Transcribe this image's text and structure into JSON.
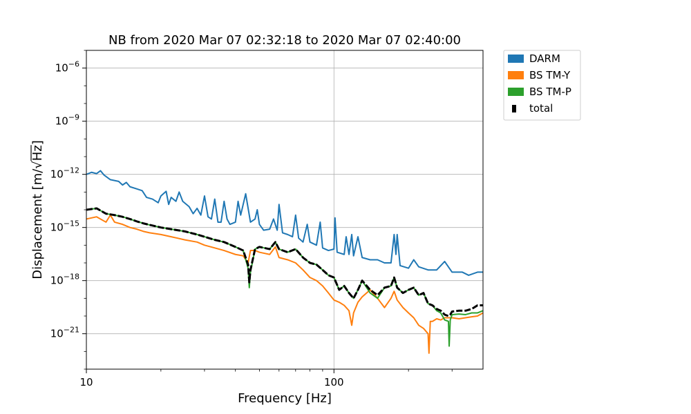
{
  "chart_data": {
    "type": "line",
    "title": "NB from 2020 Mar 07 02:32:18 to 2020 Mar 07 02:40:00",
    "xlabel": "Frequency [Hz]",
    "ylabel_prefix": "Displacement [m/",
    "ylabel_sqrt": "Hz",
    "ylabel_suffix": "]",
    "x_scale": "log",
    "y_scale": "log",
    "xlim": [
      10,
      400
    ],
    "ylim": [
      1e-23,
      1e-05
    ],
    "grid": true,
    "legend_position": "outside-top-right",
    "x_ticks": [
      {
        "value": 10,
        "label": "10"
      },
      {
        "value": 100,
        "label": "100"
      }
    ],
    "y_ticks": [
      {
        "value": 1e-06,
        "base": "10",
        "exp": "−6"
      },
      {
        "value": 1e-09,
        "base": "10",
        "exp": "−9"
      },
      {
        "value": 1e-12,
        "base": "10",
        "exp": "−12"
      },
      {
        "value": 1e-15,
        "base": "10",
        "exp": "−15"
      },
      {
        "value": 1e-18,
        "base": "10",
        "exp": "−18"
      },
      {
        "value": 1e-21,
        "base": "10",
        "exp": "−21"
      }
    ],
    "series": [
      {
        "name": "DARM",
        "color": "#1f77b4",
        "style": "solid",
        "points": [
          [
            10,
            1e-12
          ],
          [
            10.5,
            1.3e-12
          ],
          [
            11,
            1.1e-12
          ],
          [
            11.4,
            1.6e-12
          ],
          [
            11.8,
            9e-13
          ],
          [
            12.5,
            5e-13
          ],
          [
            13.5,
            4e-13
          ],
          [
            14,
            2.5e-13
          ],
          [
            14.5,
            3.5e-13
          ],
          [
            15,
            2e-13
          ],
          [
            16,
            1.5e-13
          ],
          [
            16.8,
            1.2e-13
          ],
          [
            17.5,
            5e-14
          ],
          [
            18.5,
            4e-14
          ],
          [
            19.5,
            2.5e-14
          ],
          [
            20,
            6e-14
          ],
          [
            21,
            1.1e-13
          ],
          [
            21.5,
            2e-14
          ],
          [
            22,
            5e-14
          ],
          [
            23,
            3e-14
          ],
          [
            23.7,
            1e-13
          ],
          [
            24.5,
            3e-14
          ],
          [
            26,
            1.5e-14
          ],
          [
            27,
            6e-15
          ],
          [
            28,
            1.2e-14
          ],
          [
            29,
            5e-15
          ],
          [
            30,
            6e-14
          ],
          [
            31,
            4e-15
          ],
          [
            32,
            3e-15
          ],
          [
            33,
            4e-14
          ],
          [
            34,
            2e-15
          ],
          [
            35,
            2e-15
          ],
          [
            36,
            3e-14
          ],
          [
            37,
            3e-15
          ],
          [
            38,
            1.5e-15
          ],
          [
            40,
            2e-15
          ],
          [
            41,
            3e-14
          ],
          [
            42,
            5e-15
          ],
          [
            44,
            8e-14
          ],
          [
            46,
            2e-15
          ],
          [
            48,
            3e-15
          ],
          [
            49,
            1e-14
          ],
          [
            50,
            1.5e-15
          ],
          [
            52,
            7e-16
          ],
          [
            55,
            8e-16
          ],
          [
            57,
            3e-15
          ],
          [
            59,
            7e-16
          ],
          [
            60,
            2e-14
          ],
          [
            62,
            5e-16
          ],
          [
            65,
            4e-16
          ],
          [
            68,
            3e-16
          ],
          [
            70,
            5e-15
          ],
          [
            72,
            2.5e-16
          ],
          [
            75,
            1.5e-16
          ],
          [
            78,
            1.5e-15
          ],
          [
            80,
            1.5e-16
          ],
          [
            85,
            1e-16
          ],
          [
            88,
            2e-15
          ],
          [
            90,
            7e-17
          ],
          [
            95,
            5e-17
          ],
          [
            100,
            6e-17
          ],
          [
            101,
            3.5e-15
          ],
          [
            103,
            4e-17
          ],
          [
            110,
            3e-17
          ],
          [
            112,
            3e-16
          ],
          [
            115,
            3e-17
          ],
          [
            118,
            4e-16
          ],
          [
            120,
            2.5e-17
          ],
          [
            125,
            3e-16
          ],
          [
            130,
            2e-17
          ],
          [
            140,
            1.5e-17
          ],
          [
            150,
            1.5e-17
          ],
          [
            160,
            1e-17
          ],
          [
            170,
            1e-17
          ],
          [
            175,
            4e-16
          ],
          [
            178,
            3e-17
          ],
          [
            180,
            4e-16
          ],
          [
            185,
            7e-18
          ],
          [
            200,
            5e-18
          ],
          [
            210,
            1.5e-17
          ],
          [
            220,
            6e-18
          ],
          [
            240,
            4e-18
          ],
          [
            260,
            4e-18
          ],
          [
            280,
            1.2e-17
          ],
          [
            300,
            3e-18
          ],
          [
            330,
            3e-18
          ],
          [
            350,
            2e-18
          ],
          [
            380,
            3e-18
          ],
          [
            400,
            3e-18
          ]
        ]
      },
      {
        "name": "BS TM-Y",
        "color": "#ff7f0e",
        "style": "solid",
        "points": [
          [
            10,
            3e-15
          ],
          [
            11,
            4e-15
          ],
          [
            12,
            2e-15
          ],
          [
            12.5,
            5e-15
          ],
          [
            13,
            2e-15
          ],
          [
            14,
            1.5e-15
          ],
          [
            15,
            1e-15
          ],
          [
            16,
            8e-16
          ],
          [
            17,
            6e-16
          ],
          [
            18,
            5e-16
          ],
          [
            20,
            4e-16
          ],
          [
            22,
            3e-16
          ],
          [
            25,
            2e-16
          ],
          [
            28,
            1.5e-16
          ],
          [
            30,
            1e-16
          ],
          [
            33,
            7e-17
          ],
          [
            36,
            5e-17
          ],
          [
            40,
            3e-17
          ],
          [
            43,
            2.5e-17
          ],
          [
            45,
            1e-17
          ],
          [
            46,
            5e-17
          ],
          [
            48,
            5e-17
          ],
          [
            50,
            4e-17
          ],
          [
            55,
            3e-17
          ],
          [
            58,
            8e-17
          ],
          [
            60,
            2e-17
          ],
          [
            65,
            1.5e-17
          ],
          [
            70,
            1e-17
          ],
          [
            75,
            4e-18
          ],
          [
            80,
            1.5e-18
          ],
          [
            85,
            1e-18
          ],
          [
            90,
            5e-19
          ],
          [
            95,
            2e-19
          ],
          [
            100,
            8e-20
          ],
          [
            105,
            6e-20
          ],
          [
            110,
            4e-20
          ],
          [
            115,
            2e-20
          ],
          [
            118,
            3e-21
          ],
          [
            120,
            1.5e-20
          ],
          [
            125,
            6e-20
          ],
          [
            130,
            1.2e-19
          ],
          [
            140,
            3e-19
          ],
          [
            150,
            1e-19
          ],
          [
            160,
            3e-20
          ],
          [
            170,
            1e-19
          ],
          [
            175,
            2.5e-19
          ],
          [
            180,
            8e-20
          ],
          [
            190,
            3e-20
          ],
          [
            200,
            1.5e-20
          ],
          [
            210,
            8e-21
          ],
          [
            220,
            3e-21
          ],
          [
            230,
            2e-21
          ],
          [
            240,
            1e-21
          ],
          [
            242,
            8e-23
          ],
          [
            245,
            5e-21
          ],
          [
            250,
            5e-21
          ],
          [
            260,
            7e-21
          ],
          [
            270,
            6e-21
          ],
          [
            280,
            8e-21
          ],
          [
            300,
            8e-21
          ],
          [
            320,
            7e-21
          ],
          [
            340,
            8e-21
          ],
          [
            360,
            9e-21
          ],
          [
            380,
            1e-20
          ],
          [
            400,
            1.5e-20
          ]
        ]
      },
      {
        "name": "BS TM-P",
        "color": "#2ca02c",
        "style": "solid",
        "points": [
          [
            10,
            1e-14
          ],
          [
            11,
            1.2e-14
          ],
          [
            12,
            6e-15
          ],
          [
            13,
            5e-15
          ],
          [
            14,
            4e-15
          ],
          [
            15,
            3e-15
          ],
          [
            16,
            2.2e-15
          ],
          [
            17,
            1.7e-15
          ],
          [
            18,
            1.4e-15
          ],
          [
            20,
            1e-15
          ],
          [
            22,
            8e-16
          ],
          [
            25,
            6e-16
          ],
          [
            28,
            4e-16
          ],
          [
            30,
            3e-16
          ],
          [
            33,
            2e-16
          ],
          [
            36,
            1.5e-16
          ],
          [
            40,
            8e-17
          ],
          [
            43,
            5e-17
          ],
          [
            45,
            5e-18
          ],
          [
            45.5,
            4e-19
          ],
          [
            46,
            3e-18
          ],
          [
            48,
            6e-17
          ],
          [
            50,
            8e-17
          ],
          [
            55,
            6e-17
          ],
          [
            58,
            1.5e-16
          ],
          [
            60,
            6e-17
          ],
          [
            65,
            4e-17
          ],
          [
            70,
            6e-17
          ],
          [
            75,
            2e-17
          ],
          [
            80,
            1e-17
          ],
          [
            85,
            8e-18
          ],
          [
            90,
            4e-18
          ],
          [
            95,
            2e-18
          ],
          [
            100,
            1.5e-18
          ],
          [
            105,
            3e-19
          ],
          [
            110,
            5e-19
          ],
          [
            115,
            2e-19
          ],
          [
            120,
            1e-19
          ],
          [
            125,
            3e-19
          ],
          [
            130,
            1e-18
          ],
          [
            140,
            2e-19
          ],
          [
            150,
            1e-19
          ],
          [
            160,
            4e-19
          ],
          [
            170,
            5e-19
          ],
          [
            175,
            1.5e-18
          ],
          [
            180,
            4e-19
          ],
          [
            190,
            2e-19
          ],
          [
            200,
            3e-19
          ],
          [
            210,
            4e-19
          ],
          [
            220,
            1.5e-19
          ],
          [
            230,
            2e-19
          ],
          [
            240,
            5e-20
          ],
          [
            250,
            4e-20
          ],
          [
            260,
            2e-20
          ],
          [
            270,
            1.5e-20
          ],
          [
            280,
            6e-21
          ],
          [
            290,
            5e-21
          ],
          [
            292,
            2e-22
          ],
          [
            295,
            6e-21
          ],
          [
            300,
            1.2e-20
          ],
          [
            320,
            1.3e-20
          ],
          [
            340,
            1.2e-20
          ],
          [
            360,
            1.5e-20
          ],
          [
            380,
            1.5e-20
          ],
          [
            400,
            2e-20
          ]
        ]
      },
      {
        "name": "total",
        "color": "#000000",
        "style": "dashed",
        "points": [
          [
            10,
            1e-14
          ],
          [
            11,
            1.2e-14
          ],
          [
            12,
            6e-15
          ],
          [
            13,
            5e-15
          ],
          [
            14,
            4e-15
          ],
          [
            15,
            3e-15
          ],
          [
            16,
            2.2e-15
          ],
          [
            17,
            1.7e-15
          ],
          [
            18,
            1.4e-15
          ],
          [
            20,
            1e-15
          ],
          [
            22,
            8e-16
          ],
          [
            25,
            6e-16
          ],
          [
            28,
            4e-16
          ],
          [
            30,
            3e-16
          ],
          [
            33,
            2e-16
          ],
          [
            36,
            1.5e-16
          ],
          [
            40,
            8e-17
          ],
          [
            43,
            5e-17
          ],
          [
            45,
            8e-18
          ],
          [
            45.5,
            8e-19
          ],
          [
            46,
            4e-18
          ],
          [
            48,
            6e-17
          ],
          [
            50,
            8e-17
          ],
          [
            55,
            6e-17
          ],
          [
            58,
            1.5e-16
          ],
          [
            60,
            6e-17
          ],
          [
            65,
            4e-17
          ],
          [
            70,
            6e-17
          ],
          [
            75,
            2e-17
          ],
          [
            80,
            1e-17
          ],
          [
            85,
            8e-18
          ],
          [
            90,
            4e-18
          ],
          [
            95,
            2e-18
          ],
          [
            100,
            1.5e-18
          ],
          [
            105,
            3e-19
          ],
          [
            110,
            5e-19
          ],
          [
            115,
            2e-19
          ],
          [
            120,
            1e-19
          ],
          [
            125,
            3e-19
          ],
          [
            130,
            1e-18
          ],
          [
            140,
            3e-19
          ],
          [
            150,
            1.5e-19
          ],
          [
            160,
            4e-19
          ],
          [
            170,
            5e-19
          ],
          [
            175,
            1.5e-18
          ],
          [
            180,
            4e-19
          ],
          [
            190,
            2e-19
          ],
          [
            200,
            3e-19
          ],
          [
            210,
            4e-19
          ],
          [
            220,
            1.5e-19
          ],
          [
            230,
            2e-19
          ],
          [
            240,
            5e-20
          ],
          [
            250,
            4e-20
          ],
          [
            260,
            2.5e-20
          ],
          [
            270,
            2e-20
          ],
          [
            280,
            1.2e-20
          ],
          [
            290,
            1e-20
          ],
          [
            295,
            1.2e-20
          ],
          [
            300,
            1.8e-20
          ],
          [
            320,
            2e-20
          ],
          [
            340,
            2e-20
          ],
          [
            360,
            2.5e-20
          ],
          [
            380,
            4e-20
          ],
          [
            400,
            4e-20
          ]
        ]
      }
    ]
  }
}
